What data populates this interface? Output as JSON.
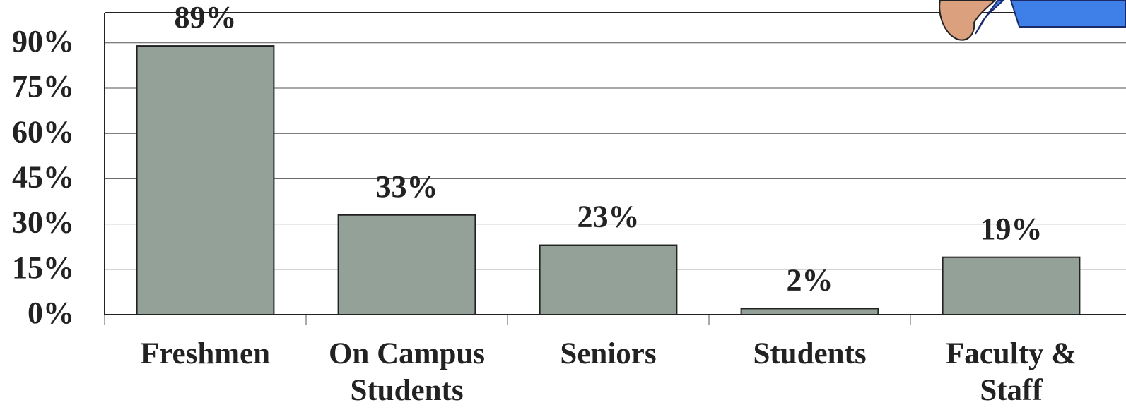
{
  "chart_data": {
    "type": "bar",
    "categories": [
      "Freshmen",
      "On Campus Students",
      "Seniors",
      "Students",
      "Faculty & Staff"
    ],
    "values": [
      89,
      33,
      23,
      2,
      19
    ],
    "value_labels": [
      "89%",
      "33%",
      "23%",
      "2%",
      "19%"
    ],
    "color": "#93a198",
    "ylim": [
      0,
      100
    ],
    "yticks": [
      {
        "value": 0,
        "label": "0%"
      },
      {
        "value": 15,
        "label": "15%"
      },
      {
        "value": 30,
        "label": "30%"
      },
      {
        "value": 45,
        "label": "45%"
      },
      {
        "value": 60,
        "label": "60%"
      },
      {
        "value": 75,
        "label": "75%"
      },
      {
        "value": 90,
        "label": "90%"
      }
    ],
    "grid": true
  }
}
